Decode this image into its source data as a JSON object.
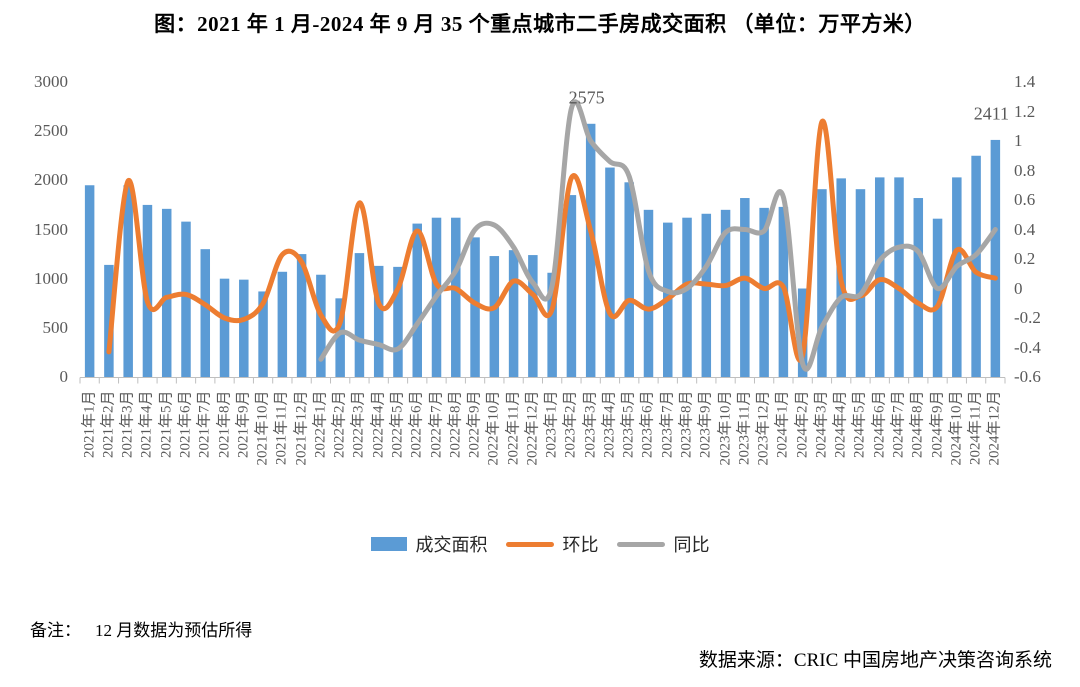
{
  "title": "图：2021 年 1 月-2024 年 9 月 35 个重点城市二手房成交面积 （单位：万平方米）",
  "note_label": "备注：",
  "note_text": "12 月数据为预估所得",
  "source": "数据来源：CRIC 中国房地产决策咨询系统",
  "annotations": [
    {
      "text": "2575",
      "month": "2023年3月"
    },
    {
      "text": "2411",
      "month": "2024年12月"
    }
  ],
  "legend": [
    {
      "label": "成交面积",
      "type": "bar",
      "color": "#5B9BD5"
    },
    {
      "label": "环比",
      "type": "line",
      "color": "#ED7D31"
    },
    {
      "label": "同比",
      "type": "line",
      "color": "#A6A6A6"
    }
  ],
  "chart_data": {
    "type": "bar",
    "subtype": "bar+line combo, dual axis",
    "grid": false,
    "legend_position": "bottom",
    "categories": [
      "2021年1月",
      "2021年2月",
      "2021年3月",
      "2021年4月",
      "2021年5月",
      "2021年6月",
      "2021年7月",
      "2021年8月",
      "2021年9月",
      "2021年10月",
      "2021年11月",
      "2021年12月",
      "2022年1月",
      "2022年2月",
      "2022年3月",
      "2022年4月",
      "2022年5月",
      "2022年6月",
      "2022年7月",
      "2022年8月",
      "2022年9月",
      "2022年10月",
      "2022年11月",
      "2022年12月",
      "2023年1月",
      "2023年2月",
      "2023年3月",
      "2023年4月",
      "2023年5月",
      "2023年6月",
      "2023年7月",
      "2023年8月",
      "2023年9月",
      "2023年10月",
      "2023年11月",
      "2023年12月",
      "2024年1月",
      "2024年2月",
      "2024年3月",
      "2024年4月",
      "2024年5月",
      "2024年6月",
      "2024年7月",
      "2024年8月",
      "2024年9月",
      "2024年10月",
      "2024年11月",
      "2024年12月"
    ],
    "series": [
      {
        "name": "成交面积",
        "type": "bar",
        "axis": "left",
        "color": "#5B9BD5",
        "values": [
          1950,
          1140,
          1950,
          1750,
          1710,
          1580,
          1300,
          1000,
          990,
          870,
          1070,
          1250,
          1040,
          800,
          1260,
          1130,
          1120,
          1560,
          1620,
          1620,
          1420,
          1230,
          1290,
          1240,
          1060,
          1850,
          2575,
          2130,
          1980,
          1700,
          1570,
          1620,
          1660,
          1700,
          1820,
          1720,
          1730,
          900,
          1910,
          2020,
          1910,
          2030,
          2030,
          1820,
          1610,
          2030,
          2250,
          2411
        ]
      },
      {
        "name": "环比",
        "type": "line",
        "axis": "right",
        "color": "#ED7D31",
        "values": [
          null,
          -0.43,
          0.73,
          -0.09,
          -0.06,
          -0.04,
          -0.11,
          -0.2,
          -0.21,
          -0.1,
          0.23,
          0.18,
          -0.18,
          -0.23,
          0.58,
          -0.1,
          0.0,
          0.39,
          0.03,
          0.0,
          -0.1,
          -0.13,
          0.05,
          -0.04,
          -0.14,
          0.75,
          0.39,
          -0.17,
          -0.08,
          -0.14,
          -0.07,
          0.03,
          0.03,
          0.02,
          0.07,
          0.0,
          0.01,
          -0.45,
          1.13,
          0.05,
          -0.05,
          0.06,
          0.0,
          -0.1,
          -0.12,
          0.26,
          0.11,
          0.07
        ]
      },
      {
        "name": "同比",
        "type": "line",
        "axis": "right",
        "color": "#A6A6A6",
        "values": [
          null,
          null,
          null,
          null,
          null,
          null,
          null,
          null,
          null,
          null,
          null,
          null,
          -0.48,
          -0.3,
          -0.35,
          -0.38,
          -0.41,
          -0.24,
          -0.05,
          0.12,
          0.4,
          0.43,
          0.28,
          0.04,
          0.02,
          1.22,
          1.0,
          0.86,
          0.76,
          0.12,
          -0.02,
          0.0,
          0.15,
          0.38,
          0.4,
          0.39,
          0.62,
          -0.51,
          -0.26,
          -0.06,
          -0.04,
          0.19,
          0.28,
          0.25,
          0.0,
          0.15,
          0.23,
          0.4
        ]
      }
    ],
    "left_axis": {
      "min": 0,
      "max": 3000,
      "step": 500,
      "ticks": [
        "0",
        "500",
        "1000",
        "1500",
        "2000",
        "2500",
        "3000"
      ]
    },
    "right_axis": {
      "min": -0.6,
      "max": 1.4,
      "step": 0.2,
      "ticks": [
        "-0.6",
        "-0.4",
        "-0.2",
        "0",
        "0.2",
        "0.4",
        "0.6",
        "0.8",
        "1",
        "1.2",
        "1.4"
      ]
    }
  }
}
